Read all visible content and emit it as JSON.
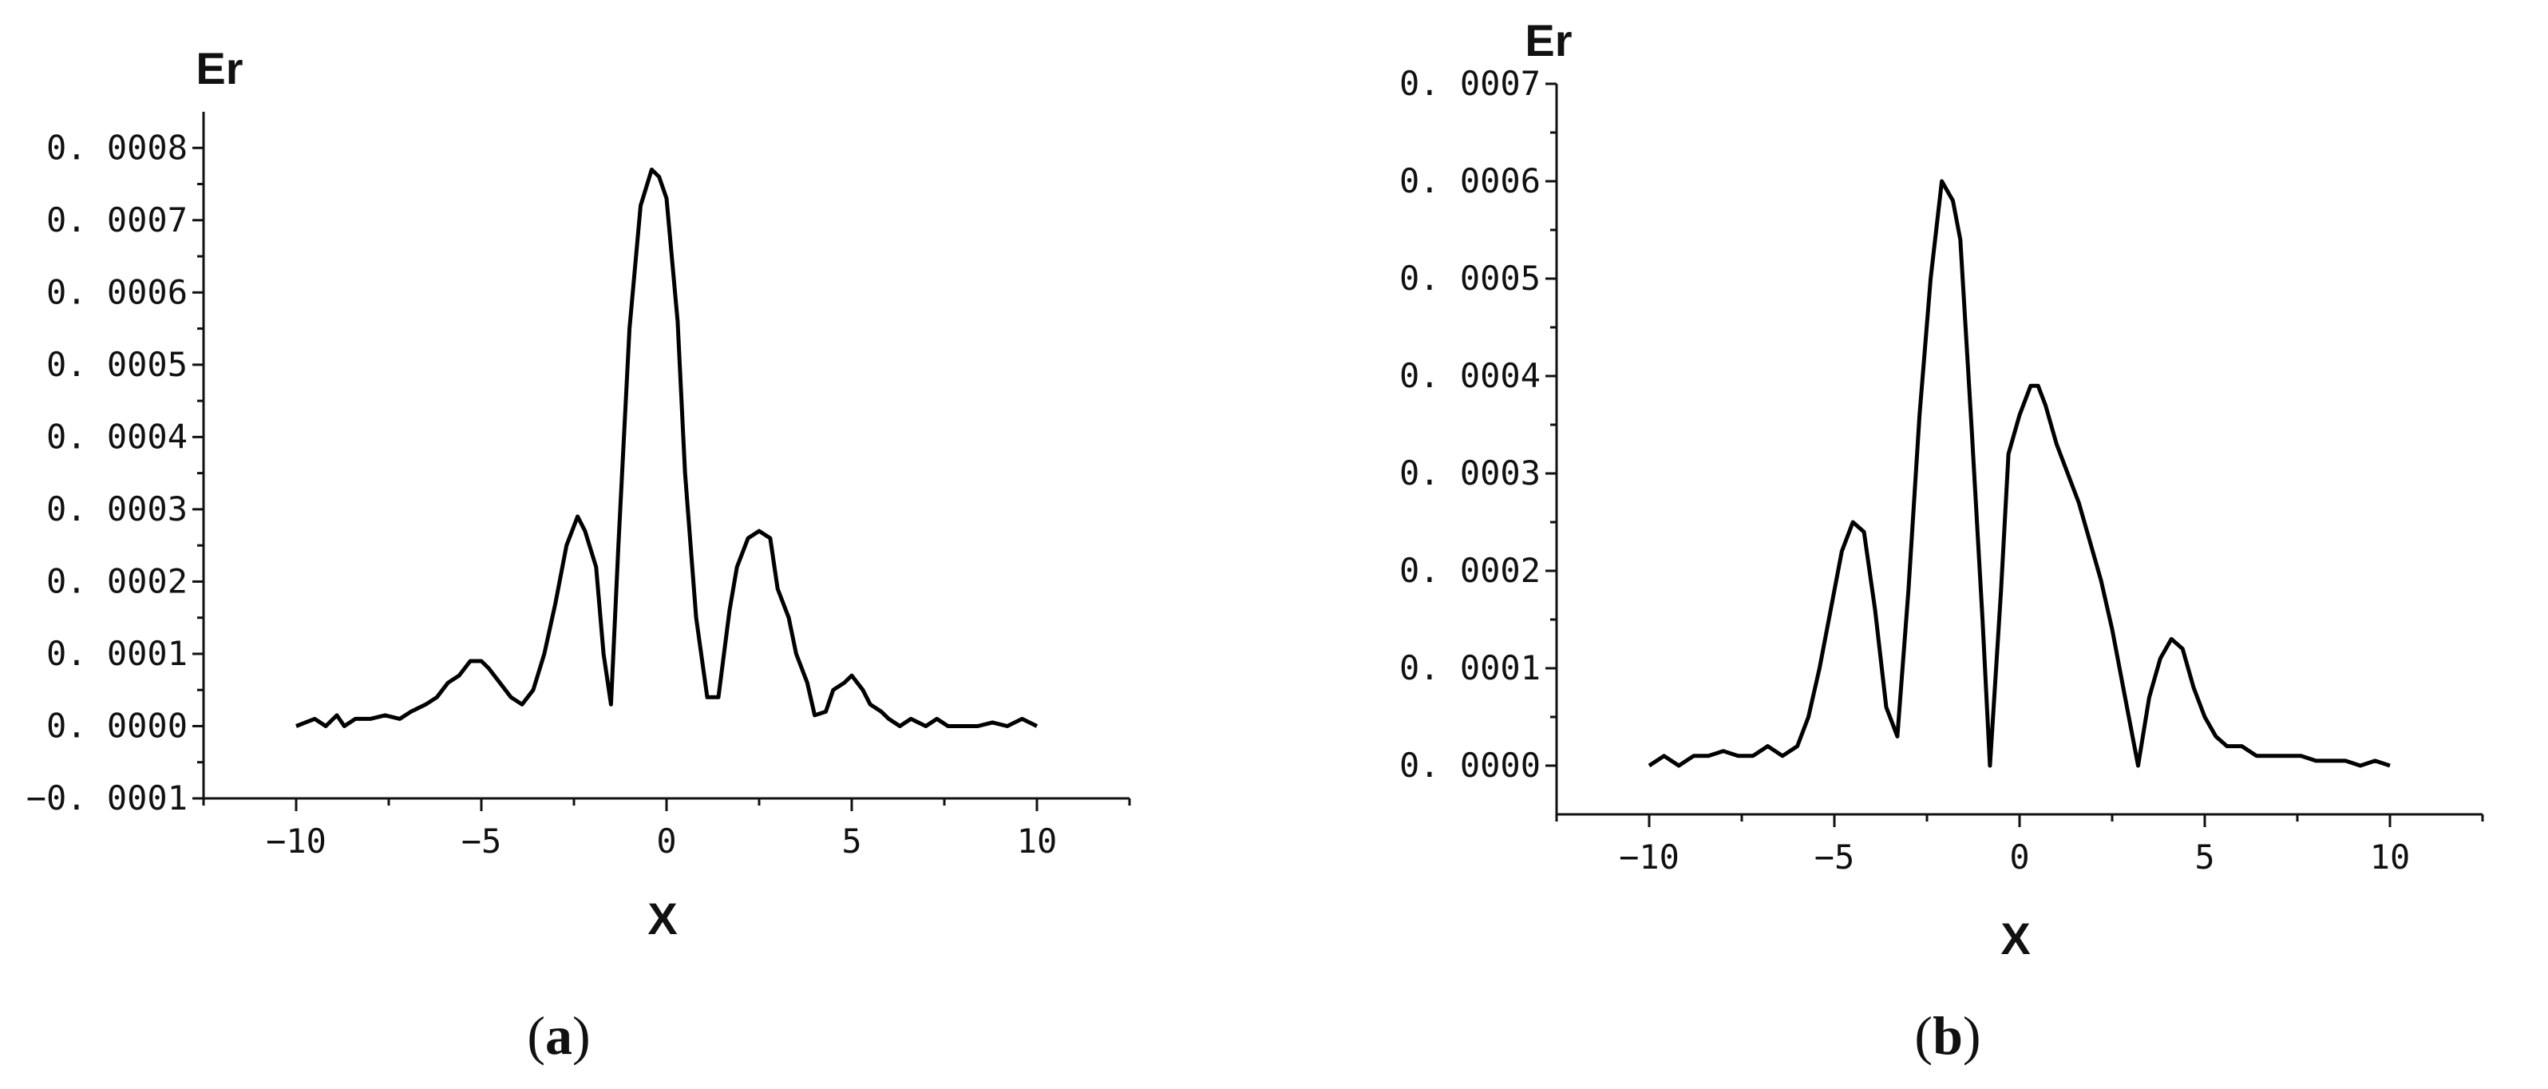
{
  "chart_data": [
    {
      "type": "line",
      "panel_label": "a",
      "xlabel": "X",
      "ylabel": "Er",
      "xlim": [
        -12.5,
        12.5
      ],
      "ylim": [
        -0.0001,
        0.00085
      ],
      "xticks": [
        -10,
        -5,
        0,
        5,
        10
      ],
      "xtick_labels": [
        "−10",
        "−5",
        "0",
        "5",
        "10"
      ],
      "yticks": [
        -0.0001,
        0.0,
        0.0001,
        0.0002,
        0.0003,
        0.0004,
        0.0005,
        0.0006,
        0.0007,
        0.0008
      ],
      "ytick_labels": [
        "−0. 0001",
        "0. 0000",
        "0. 0001",
        "0. 0002",
        "0. 0003",
        "0. 0004",
        "0. 0005",
        "0. 0006",
        "0. 0007",
        "0. 0008"
      ],
      "grid": false,
      "series": [
        {
          "color": "#000000",
          "x": [
            -10,
            -9.5,
            -9.2,
            -8.9,
            -8.7,
            -8.4,
            -8,
            -7.6,
            -7.2,
            -6.9,
            -6.5,
            -6.2,
            -5.9,
            -5.6,
            -5.3,
            -5.0,
            -4.8,
            -4.5,
            -4.2,
            -3.9,
            -3.6,
            -3.3,
            -3.0,
            -2.7,
            -2.4,
            -2.2,
            -1.9,
            -1.7,
            -1.5,
            -1.3,
            -1.0,
            -0.7,
            -0.4,
            -0.2,
            0.0,
            0.3,
            0.5,
            0.8,
            1.1,
            1.4,
            1.7,
            1.9,
            2.2,
            2.5,
            2.8,
            3.0,
            3.3,
            3.5,
            3.8,
            4.0,
            4.3,
            4.5,
            4.8,
            5.0,
            5.3,
            5.5,
            5.8,
            6.0,
            6.3,
            6.6,
            7.0,
            7.3,
            7.6,
            8.0,
            8.4,
            8.8,
            9.2,
            9.6,
            10
          ],
          "y": [
            0.0,
            1e-05,
            0.0,
            1.5e-05,
            0.0,
            1e-05,
            1e-05,
            1.5e-05,
            1e-05,
            2e-05,
            3e-05,
            4e-05,
            6e-05,
            7e-05,
            9e-05,
            9e-05,
            8e-05,
            6e-05,
            4e-05,
            3e-05,
            5e-05,
            0.0001,
            0.00017,
            0.00025,
            0.00029,
            0.00027,
            0.00022,
            0.0001,
            3e-05,
            0.00025,
            0.00055,
            0.00072,
            0.00077,
            0.00076,
            0.00073,
            0.00056,
            0.00035,
            0.00015,
            4e-05,
            4e-05,
            0.00016,
            0.00022,
            0.00026,
            0.00027,
            0.00026,
            0.00019,
            0.00015,
            0.0001,
            6e-05,
            1.5e-05,
            2e-05,
            5e-05,
            6e-05,
            7e-05,
            5e-05,
            3e-05,
            2e-05,
            1e-05,
            0.0,
            1e-05,
            0.0,
            1e-05,
            0.0,
            0.0,
            0.0,
            5e-06,
            0.0,
            1e-05,
            0.0
          ]
        }
      ]
    },
    {
      "type": "line",
      "panel_label": "b",
      "xlabel": "X",
      "ylabel": "Er",
      "xlim": [
        -12.5,
        12.5
      ],
      "ylim": [
        -5e-05,
        0.0007
      ],
      "xticks": [
        -10,
        -5,
        0,
        5,
        10
      ],
      "xtick_labels": [
        "−10",
        "−5",
        "0",
        "5",
        "10"
      ],
      "yticks": [
        0.0,
        0.0001,
        0.0002,
        0.0003,
        0.0004,
        0.0005,
        0.0006,
        0.0007
      ],
      "ytick_labels": [
        "0. 0000",
        "0. 0001",
        "0. 0002",
        "0. 0003",
        "0. 0004",
        "0. 0005",
        "0. 0006",
        "0. 0007"
      ],
      "grid": false,
      "series": [
        {
          "color": "#000000",
          "x": [
            -10,
            -9.6,
            -9.2,
            -8.8,
            -8.4,
            -8.0,
            -7.6,
            -7.2,
            -6.8,
            -6.4,
            -6.0,
            -5.7,
            -5.4,
            -5.1,
            -4.8,
            -4.5,
            -4.2,
            -3.9,
            -3.6,
            -3.3,
            -3.0,
            -2.7,
            -2.4,
            -2.1,
            -1.8,
            -1.6,
            -1.3,
            -1.0,
            -0.8,
            -0.5,
            -0.3,
            0.0,
            0.3,
            0.5,
            0.7,
            1.0,
            1.3,
            1.6,
            1.9,
            2.2,
            2.5,
            2.8,
            3.2,
            3.5,
            3.8,
            4.1,
            4.4,
            4.7,
            5.0,
            5.3,
            5.6,
            6.0,
            6.4,
            6.8,
            7.2,
            7.6,
            8.0,
            8.4,
            8.8,
            9.2,
            9.6,
            10
          ],
          "y": [
            0.0,
            1e-05,
            0.0,
            1e-05,
            1e-05,
            1.5e-05,
            1e-05,
            1e-05,
            2e-05,
            1e-05,
            2e-05,
            5e-05,
            0.0001,
            0.00016,
            0.00022,
            0.00025,
            0.00024,
            0.00016,
            6e-05,
            3e-05,
            0.00018,
            0.00036,
            0.0005,
            0.0006,
            0.00058,
            0.00054,
            0.00035,
            0.00015,
            0.0,
            0.00018,
            0.00032,
            0.00036,
            0.00039,
            0.00039,
            0.00037,
            0.00033,
            0.0003,
            0.00027,
            0.00023,
            0.00019,
            0.00014,
            8e-05,
            0.0,
            7e-05,
            0.00011,
            0.00013,
            0.00012,
            8e-05,
            5e-05,
            3e-05,
            2e-05,
            2e-05,
            1e-05,
            1e-05,
            1e-05,
            1e-05,
            5e-06,
            5e-06,
            5e-06,
            0.0,
            5e-06,
            0.0
          ]
        }
      ]
    }
  ]
}
